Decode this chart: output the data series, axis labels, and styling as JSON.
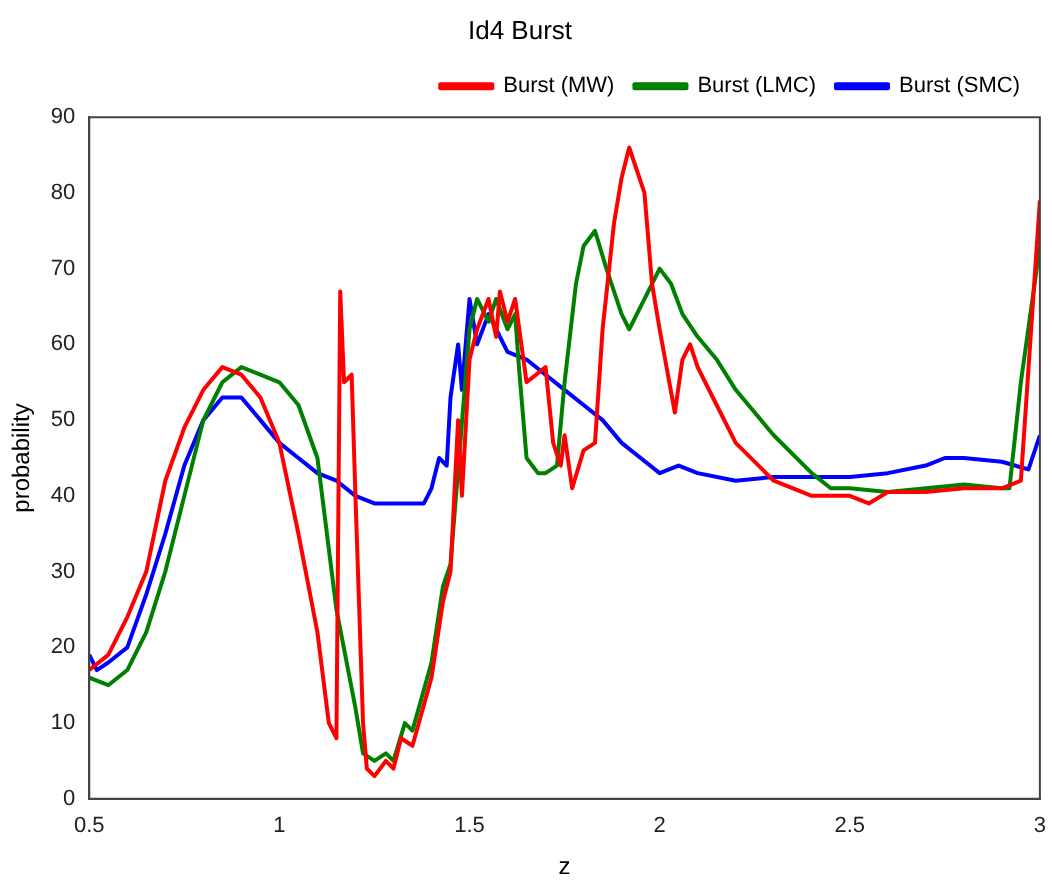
{
  "chart_data": {
    "type": "line",
    "title": "Id4 Burst",
    "xlabel": "z",
    "ylabel": "probability",
    "xlim": [
      0.5,
      3
    ],
    "xticks": [
      0.5,
      1,
      1.5,
      2,
      2.5,
      3
    ],
    "ylim": [
      0,
      90
    ],
    "yticks": [
      0,
      10,
      20,
      30,
      40,
      50,
      60,
      70,
      80,
      90
    ],
    "grid": false,
    "legend": "top right",
    "marker": "none",
    "line_style": "solid",
    "series": [
      {
        "name": "Burst (MW)",
        "color": "#ff0000",
        "x": [
          0.5,
          0.55,
          0.6,
          0.65,
          0.7,
          0.75,
          0.8,
          0.85,
          0.9,
          0.95,
          1.0,
          1.05,
          1.1,
          1.13,
          1.15,
          1.16,
          1.17,
          1.19,
          1.2,
          1.22,
          1.23,
          1.25,
          1.28,
          1.3,
          1.32,
          1.35,
          1.4,
          1.43,
          1.45,
          1.47,
          1.48,
          1.5,
          1.52,
          1.55,
          1.57,
          1.58,
          1.6,
          1.62,
          1.65,
          1.7,
          1.72,
          1.74,
          1.75,
          1.77,
          1.8,
          1.83,
          1.85,
          1.88,
          1.9,
          1.92,
          1.96,
          1.98,
          2.0,
          2.04,
          2.06,
          2.08,
          2.1,
          2.15,
          2.2,
          2.3,
          2.4,
          2.5,
          2.55,
          2.6,
          2.7,
          2.8,
          2.9,
          2.95,
          3.0
        ],
        "values": [
          17,
          19,
          24,
          30,
          42,
          49,
          54,
          57,
          56,
          53,
          47,
          35,
          22,
          10,
          8,
          67,
          55,
          56,
          40,
          10,
          4,
          3,
          5,
          4,
          8,
          7,
          16,
          26,
          30,
          50,
          40,
          58,
          62,
          66,
          61,
          67,
          63,
          66,
          55,
          57,
          47,
          44,
          48,
          41,
          46,
          47,
          62,
          76,
          82,
          86,
          80,
          68,
          62,
          51,
          58,
          60,
          57,
          52,
          47,
          42,
          40,
          40,
          39,
          40.5,
          40.5,
          41,
          41,
          42,
          79
        ]
      },
      {
        "name": "Burst (LMC)",
        "color": "#008000",
        "x": [
          0.5,
          0.55,
          0.6,
          0.65,
          0.7,
          0.75,
          0.8,
          0.85,
          0.9,
          0.95,
          1.0,
          1.05,
          1.1,
          1.15,
          1.2,
          1.22,
          1.25,
          1.28,
          1.3,
          1.33,
          1.35,
          1.4,
          1.43,
          1.45,
          1.5,
          1.52,
          1.55,
          1.57,
          1.6,
          1.62,
          1.63,
          1.65,
          1.68,
          1.7,
          1.73,
          1.75,
          1.78,
          1.8,
          1.83,
          1.86,
          1.9,
          1.92,
          1.95,
          1.98,
          2.0,
          2.03,
          2.06,
          2.1,
          2.15,
          2.2,
          2.3,
          2.4,
          2.45,
          2.5,
          2.6,
          2.7,
          2.8,
          2.9,
          2.92,
          2.95,
          3.0
        ],
        "values": [
          16,
          15,
          17,
          22,
          30,
          40,
          50,
          55,
          57,
          56,
          55,
          52,
          45,
          25,
          12,
          6,
          5,
          6,
          5,
          10,
          9,
          18,
          28,
          31,
          62,
          66,
          63,
          66,
          62,
          64,
          57,
          45,
          43,
          43,
          44,
          55,
          68,
          73,
          75,
          70,
          64,
          62,
          65,
          68,
          70,
          68,
          64,
          61,
          58,
          54,
          48,
          43,
          41,
          41,
          40.5,
          41,
          41.5,
          41,
          41,
          55,
          73
        ]
      },
      {
        "name": "Burst (SMC)",
        "color": "#0000ff",
        "x": [
          0.5,
          0.52,
          0.55,
          0.6,
          0.65,
          0.7,
          0.75,
          0.8,
          0.85,
          0.9,
          0.95,
          1.0,
          1.05,
          1.1,
          1.15,
          1.2,
          1.25,
          1.3,
          1.35,
          1.38,
          1.4,
          1.42,
          1.44,
          1.45,
          1.47,
          1.48,
          1.5,
          1.52,
          1.55,
          1.6,
          1.65,
          1.7,
          1.75,
          1.8,
          1.85,
          1.9,
          1.95,
          2.0,
          2.05,
          2.1,
          2.2,
          2.3,
          2.4,
          2.5,
          2.6,
          2.7,
          2.75,
          2.8,
          2.9,
          2.97,
          3.0
        ],
        "values": [
          19,
          17,
          18,
          20,
          27,
          35,
          44,
          50,
          53,
          53,
          50,
          47,
          45,
          43,
          42,
          40,
          39,
          39,
          39,
          39,
          41,
          45,
          44,
          53,
          60,
          54,
          66,
          60,
          64,
          59,
          58,
          56,
          54,
          52,
          50,
          47,
          45,
          43,
          44,
          43,
          42,
          42.5,
          42.5,
          42.5,
          43,
          44,
          45,
          45,
          44.5,
          43.5,
          48
        ]
      }
    ]
  }
}
